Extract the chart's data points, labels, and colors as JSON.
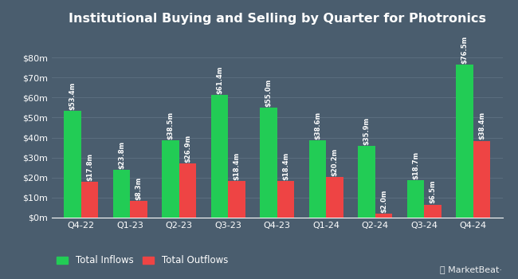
{
  "title": "Institutional Buying and Selling by Quarter for Photronics",
  "quarters": [
    "Q4-22",
    "Q1-23",
    "Q2-23",
    "Q3-23",
    "Q4-23",
    "Q1-24",
    "Q2-24",
    "Q3-24",
    "Q4-24"
  ],
  "inflows": [
    53.4,
    23.8,
    38.5,
    61.4,
    55.0,
    38.6,
    35.9,
    18.7,
    76.5
  ],
  "outflows": [
    17.8,
    8.3,
    26.9,
    18.4,
    18.4,
    20.2,
    2.0,
    6.5,
    38.4
  ],
  "inflow_labels": [
    "$53.4m",
    "$23.8m",
    "$38.5m",
    "$61.4m",
    "$55.0m",
    "$38.6m",
    "$35.9m",
    "$18.7m",
    "$76.5m"
  ],
  "outflow_labels": [
    "$17.8m",
    "$8.3m",
    "$26.9m",
    "$18.4m",
    "$18.4m",
    "$20.2m",
    "$2.0m",
    "$6.5m",
    "$38.4m"
  ],
  "inflow_color": "#22cc55",
  "outflow_color": "#ee4444",
  "bg_color": "#4a5d6e",
  "grid_color": "#5a6d7e",
  "text_color": "#ffffff",
  "legend_inflow": "Total Inflows",
  "legend_outflow": "Total Outflows",
  "ylim": [
    0,
    92
  ],
  "yticks": [
    0,
    10,
    20,
    30,
    40,
    50,
    60,
    70,
    80
  ],
  "ytick_labels": [
    "$0m",
    "$10m",
    "$20m",
    "$30m",
    "$40m",
    "$50m",
    "$60m",
    "$70m",
    "$80m"
  ],
  "bar_width": 0.35,
  "title_fontsize": 11.5,
  "label_fontsize": 6.0,
  "axis_fontsize": 8.0,
  "legend_fontsize": 8.5
}
